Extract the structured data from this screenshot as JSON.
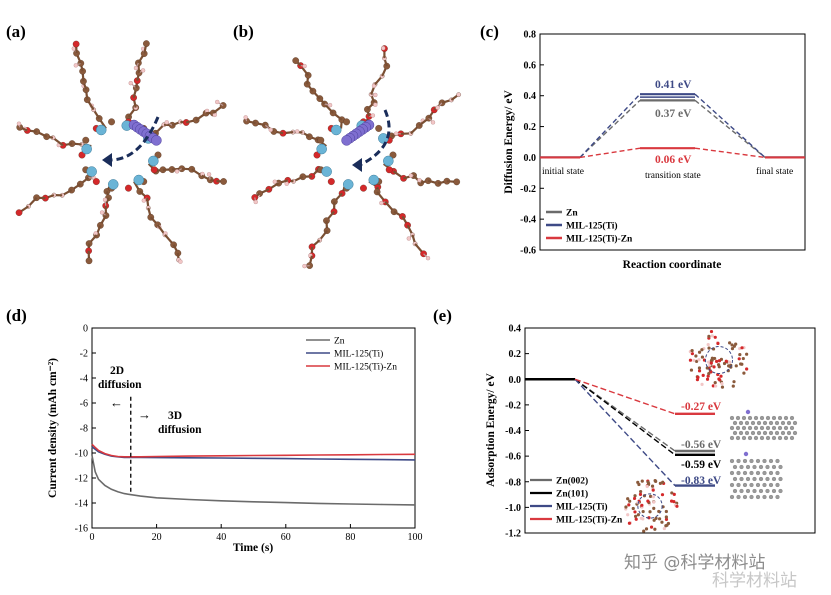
{
  "panels": {
    "a": "(a)",
    "b": "(b)",
    "c": "(c)",
    "d": "(d)",
    "e": "(e)"
  },
  "colors": {
    "zn": "#6b6b6b",
    "zn101": "#000000",
    "mil": "#3e4a86",
    "milzn": "#d9393f",
    "atom_c": "#8a5a3c",
    "atom_o": "#d4282a",
    "atom_h": "#f2c7c7",
    "atom_ti": "#6ab4d6",
    "atom_zn": "#7f6fd0",
    "arrow": "#1a2d5a"
  },
  "chart_data": [
    {
      "id": "c",
      "type": "line",
      "ylabel": "Diffusion Energy/ eV",
      "xlabel": "Reaction coordinate",
      "ylim": [
        -0.6,
        0.8
      ],
      "yticks": [
        "-0.6",
        "-0.4",
        "-0.2",
        "0.0",
        "0.2",
        "0.4",
        "0.6",
        "0.8"
      ],
      "states": [
        "initial state",
        "transition state",
        "final state"
      ],
      "series": [
        {
          "name": "Zn",
          "values": [
            0,
            0.37,
            0
          ],
          "label": "0.37 eV"
        },
        {
          "name": "MIL-125(Ti)",
          "values": [
            0,
            0.41,
            0
          ],
          "label": "0.41 eV"
        },
        {
          "name": "MIL-125(Ti)-Zn",
          "values": [
            0,
            0.06,
            0
          ],
          "label": "0.06 eV"
        }
      ],
      "legend": [
        "Zn",
        "MIL-125(Ti)",
        "MIL-125(Ti)-Zn"
      ]
    },
    {
      "id": "d",
      "type": "line",
      "ylabel": "Current density (mAh cm⁻²)",
      "xlabel": "Time (s)",
      "ylim": [
        -16,
        0
      ],
      "xlim": [
        0,
        100
      ],
      "yticks": [
        "0",
        "-2",
        "-4",
        "-6",
        "-8",
        "-10",
        "-12",
        "-14",
        "-16"
      ],
      "xticks": [
        "0",
        "20",
        "40",
        "60",
        "80",
        "100"
      ],
      "divider_x": 12,
      "annotation_2d": [
        "2D",
        "diffusion"
      ],
      "annotation_3d": [
        "3D",
        "diffusion"
      ],
      "series": [
        {
          "name": "Zn",
          "x": [
            0,
            1,
            2,
            4,
            6,
            8,
            10,
            15,
            20,
            30,
            40,
            50,
            60,
            70,
            80,
            90,
            100
          ],
          "values": [
            -10.2,
            -11.5,
            -12.1,
            -12.6,
            -12.9,
            -13.1,
            -13.25,
            -13.45,
            -13.58,
            -13.72,
            -13.82,
            -13.9,
            -13.97,
            -14.03,
            -14.08,
            -14.12,
            -14.15
          ]
        },
        {
          "name": "MIL-125(Ti)",
          "x": [
            0,
            1,
            2,
            4,
            6,
            8,
            10,
            15,
            20,
            30,
            40,
            50,
            60,
            70,
            80,
            90,
            100
          ],
          "values": [
            -9.5,
            -9.7,
            -9.9,
            -10.1,
            -10.25,
            -10.3,
            -10.35,
            -10.36,
            -10.37,
            -10.38,
            -10.4,
            -10.42,
            -10.45,
            -10.48,
            -10.5,
            -10.53,
            -10.55
          ]
        },
        {
          "name": "MIL-125(Ti)-Zn",
          "x": [
            0,
            1,
            2,
            4,
            6,
            8,
            10,
            15,
            20,
            30,
            40,
            50,
            60,
            70,
            80,
            90,
            100
          ],
          "values": [
            -9.3,
            -9.55,
            -9.8,
            -10.05,
            -10.2,
            -10.28,
            -10.3,
            -10.3,
            -10.28,
            -10.25,
            -10.22,
            -10.2,
            -10.18,
            -10.16,
            -10.14,
            -10.12,
            -10.1
          ]
        }
      ],
      "legend": [
        "Zn",
        "MIL-125(Ti)",
        "MIL-125(Ti)-Zn"
      ]
    },
    {
      "id": "e",
      "type": "line",
      "ylabel": "Adsorption Energy/ eV",
      "ylim": [
        -1.2,
        0.4
      ],
      "yticks": [
        "0.4",
        "0.2",
        "0.0",
        "-0.2",
        "-0.4",
        "-0.6",
        "-0.8",
        "-1.0",
        "-1.2"
      ],
      "series": [
        {
          "name": "Zn(002)",
          "values": [
            0,
            -0.56
          ],
          "label": "-0.56 eV"
        },
        {
          "name": "Zn(101)",
          "values": [
            0,
            -0.59
          ],
          "label": "-0.59 eV"
        },
        {
          "name": "MIL-125(Ti)",
          "values": [
            0,
            -0.83
          ],
          "label": "-0.83 eV"
        },
        {
          "name": "MIL-125(Ti)-Zn",
          "values": [
            0,
            -0.27
          ],
          "label": "-0.27 eV"
        }
      ],
      "legend": [
        "Zn(002)",
        "Zn(101)",
        "MIL-125(Ti)",
        "MIL-125(Ti)-Zn"
      ]
    }
  ],
  "watermark": {
    "line1": "知乎 @科学材料站",
    "line2": "科学材料站"
  }
}
